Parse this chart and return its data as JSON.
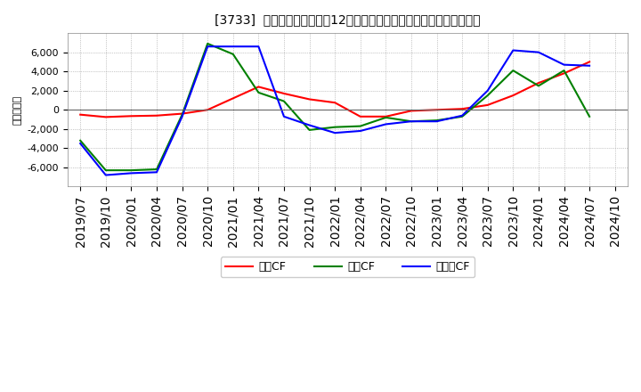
{
  "title": "[3733]  キャッシュフローの12か月移動合計の対前年同期増減額の推移",
  "ylabel": "（百万円）",
  "background_color": "#ffffff",
  "grid_color": "#aaaaaa",
  "x_labels": [
    "2019/07",
    "2019/10",
    "2020/01",
    "2020/04",
    "2020/07",
    "2020/10",
    "2021/01",
    "2021/04",
    "2021/07",
    "2021/10",
    "2022/01",
    "2022/04",
    "2022/07",
    "2022/10",
    "2023/01",
    "2023/04",
    "2023/07",
    "2023/10",
    "2024/01",
    "2024/04",
    "2024/07",
    "2024/10"
  ],
  "operating_cf": [
    -500,
    -750,
    -650,
    -600,
    -400,
    0,
    1200,
    2400,
    1700,
    1100,
    750,
    -700,
    -700,
    -100,
    0,
    100,
    500,
    1500,
    2800,
    3800,
    5000,
    null
  ],
  "investing_cf": [
    -3200,
    -6300,
    -6300,
    -6200,
    -500,
    6900,
    5800,
    1800,
    900,
    -2100,
    -1800,
    -1700,
    -800,
    -1200,
    -1100,
    -700,
    1500,
    4100,
    2500,
    4100,
    -700,
    null
  ],
  "free_cf": [
    -3500,
    -6800,
    -6600,
    -6500,
    -700,
    6600,
    6600,
    6600,
    -700,
    -1600,
    -2400,
    -2200,
    -1500,
    -1200,
    -1200,
    -600,
    2000,
    6200,
    6000,
    4700,
    4600,
    null
  ],
  "operating_color": "#ff0000",
  "investing_color": "#008000",
  "free_color": "#0000ff",
  "ylim": [
    -8000,
    8000
  ],
  "yticks": [
    -6000,
    -4000,
    -2000,
    0,
    2000,
    4000,
    6000
  ],
  "legend_labels": [
    "営業CF",
    "投賃CF",
    "フリーCF"
  ]
}
